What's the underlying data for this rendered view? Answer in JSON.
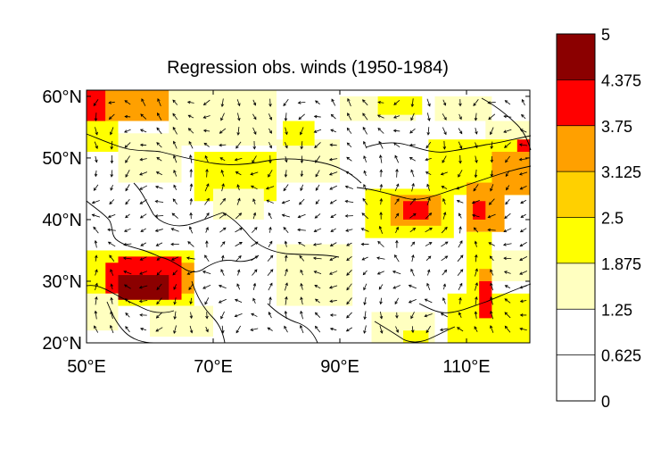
{
  "chart_data": {
    "type": "heatmap",
    "title": "Regression obs. winds (1950-1984)",
    "xlabel": "",
    "ylabel": "",
    "xlim": [
      50,
      120
    ],
    "ylim": [
      20,
      61
    ],
    "x_ticks": [
      {
        "value": 50,
        "label": "50°E"
      },
      {
        "value": 70,
        "label": "70°E"
      },
      {
        "value": 90,
        "label": "90°E"
      },
      {
        "value": 110,
        "label": "110°E"
      }
    ],
    "y_ticks": [
      {
        "value": 60,
        "label": "60°N"
      },
      {
        "value": 50,
        "label": "50°N"
      },
      {
        "value": 40,
        "label": "40°N"
      },
      {
        "value": 30,
        "label": "30°N"
      },
      {
        "value": 20,
        "label": "20°N"
      }
    ],
    "colorbar": {
      "min": 0,
      "max": 5,
      "labels": [
        "5",
        "4.375",
        "3.75",
        "3.125",
        "2.5",
        "1.875",
        "1.25",
        "0.625",
        "0"
      ],
      "colors": [
        "#ffffff",
        "#ffffff",
        "#ffffc0",
        "#ffff00",
        "#ffd000",
        "#ffa000",
        "#ff0000",
        "#8b0000"
      ]
    },
    "grid": false,
    "legend": "right",
    "regions": [
      {
        "lon": [
          50,
          120
        ],
        "lat": [
          20,
          61
        ],
        "value": 0.3
      },
      {
        "lon": [
          50,
          55
        ],
        "lat": [
          51,
          61
        ],
        "value": 2.2
      },
      {
        "lon": [
          50,
          53
        ],
        "lat": [
          56,
          61
        ],
        "value": 4.0
      },
      {
        "lon": [
          53,
          63
        ],
        "lat": [
          56,
          61
        ],
        "value": 3.3
      },
      {
        "lon": [
          63,
          80
        ],
        "lat": [
          52,
          61
        ],
        "value": 1.5
      },
      {
        "lon": [
          55,
          65
        ],
        "lat": [
          46,
          54
        ],
        "value": 1.5
      },
      {
        "lon": [
          67,
          80
        ],
        "lat": [
          43,
          51
        ],
        "value": 2.2
      },
      {
        "lon": [
          70,
          78
        ],
        "lat": [
          40,
          45
        ],
        "value": 1.5
      },
      {
        "lon": [
          80,
          90
        ],
        "lat": [
          46,
          53
        ],
        "value": 1.5
      },
      {
        "lon": [
          81,
          86
        ],
        "lat": [
          52,
          56
        ],
        "value": 2.2
      },
      {
        "lon": [
          90,
          102
        ],
        "lat": [
          56,
          60
        ],
        "value": 1.5
      },
      {
        "lon": [
          96,
          103
        ],
        "lat": [
          57,
          60
        ],
        "value": 2.2
      },
      {
        "lon": [
          105,
          114
        ],
        "lat": [
          56,
          60
        ],
        "value": 1.5
      },
      {
        "lon": [
          113,
          120
        ],
        "lat": [
          49,
          56
        ],
        "value": 1.5
      },
      {
        "lon": [
          104,
          120
        ],
        "lat": [
          44,
          53
        ],
        "value": 2.2
      },
      {
        "lon": [
          114,
          120
        ],
        "lat": [
          44,
          51
        ],
        "value": 3.3
      },
      {
        "lon": [
          118,
          120
        ],
        "lat": [
          51,
          53
        ],
        "value": 4.0
      },
      {
        "lon": [
          94,
          108
        ],
        "lat": [
          37,
          45
        ],
        "value": 2.2
      },
      {
        "lon": [
          98,
          106
        ],
        "lat": [
          39,
          44
        ],
        "value": 3.3
      },
      {
        "lon": [
          100,
          104
        ],
        "lat": [
          40,
          43
        ],
        "value": 4.0
      },
      {
        "lon": [
          110,
          116
        ],
        "lat": [
          38,
          46
        ],
        "value": 3.3
      },
      {
        "lon": [
          111,
          113
        ],
        "lat": [
          40,
          43
        ],
        "value": 4.0
      },
      {
        "lon": [
          110,
          114
        ],
        "lat": [
          24,
          38
        ],
        "value": 2.2
      },
      {
        "lon": [
          112,
          114
        ],
        "lat": [
          27,
          32
        ],
        "value": 3.3
      },
      {
        "lon": [
          114,
          120
        ],
        "lat": [
          30,
          35
        ],
        "value": 1.5
      },
      {
        "lon": [
          107,
          120
        ],
        "lat": [
          20,
          28
        ],
        "value": 2.2
      },
      {
        "lon": [
          112,
          114
        ],
        "lat": [
          24,
          30
        ],
        "value": 4.0
      },
      {
        "lon": [
          95,
          105
        ],
        "lat": [
          20,
          25
        ],
        "value": 1.5
      },
      {
        "lon": [
          100,
          104
        ],
        "lat": [
          20,
          22
        ],
        "value": 2.2
      },
      {
        "lon": [
          80,
          92
        ],
        "lat": [
          26,
          36
        ],
        "value": 1.5
      },
      {
        "lon": [
          50,
          67
        ],
        "lat": [
          26,
          35
        ],
        "value": 2.2
      },
      {
        "lon": [
          57,
          67
        ],
        "lat": [
          28,
          33
        ],
        "value": 3.3
      },
      {
        "lon": [
          53,
          57
        ],
        "lat": [
          28,
          33
        ],
        "value": 4.0
      },
      {
        "lon": [
          55,
          65
        ],
        "lat": [
          27,
          34
        ],
        "value": 4.0
      },
      {
        "lon": [
          55,
          63
        ],
        "lat": [
          27,
          31
        ],
        "value": 4.8
      },
      {
        "lon": [
          50,
          55
        ],
        "lat": [
          22,
          28
        ],
        "value": 1.5
      },
      {
        "lon": [
          60,
          70
        ],
        "lat": [
          21,
          26
        ],
        "value": 1.5
      }
    ]
  }
}
